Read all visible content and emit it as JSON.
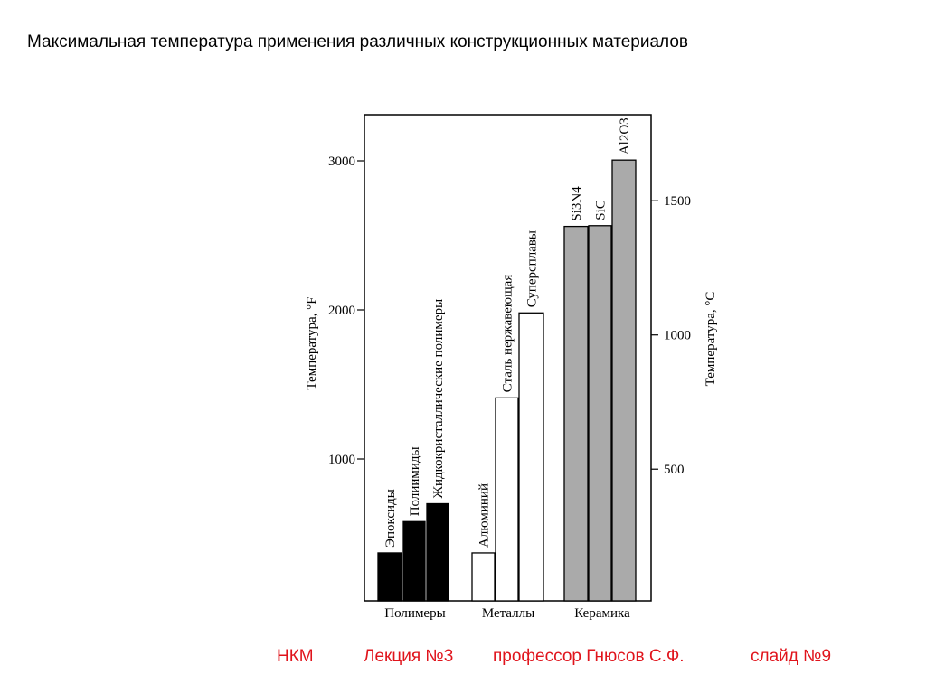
{
  "slide": {
    "title": "Максимальная температура применения различных конструкционных материалов",
    "footer": {
      "course": "НКМ",
      "lecture": "Лекция №3",
      "author": "профессор Гнюсов С.Ф.",
      "slide": "слайд №9"
    }
  },
  "colors": {
    "polymers": "#000000",
    "metals": "#ffffff",
    "ceramics": "#aaaaaa",
    "footer": "#e0141c"
  },
  "chart_data": {
    "type": "bar",
    "title": "",
    "ylabel": "Температура, °F",
    "ylabel_right": "Температура, °C",
    "ylim": [
      50,
      3310
    ],
    "yticks": [
      1000,
      2000,
      3000
    ],
    "yticks_right": [
      500,
      1000,
      1500
    ],
    "groups": [
      "Полимеры",
      "Металлы",
      "Керамика"
    ],
    "bars": [
      {
        "label": "Эпоксиды",
        "group": 0,
        "value": 370
      },
      {
        "label": "Полиимиды",
        "group": 0,
        "value": 580
      },
      {
        "label": "Жидкокристаллические полимеры",
        "group": 0,
        "value": 700
      },
      {
        "label": "Алюминий",
        "group": 1,
        "value": 370
      },
      {
        "label": "Сталь нержавеющая",
        "group": 1,
        "value": 1410
      },
      {
        "label": "Суперсплавы",
        "group": 1,
        "value": 1980
      },
      {
        "label": "Si3N4",
        "group": 2,
        "value": 2560
      },
      {
        "label": "SiC",
        "group": 2,
        "value": 2565
      },
      {
        "label": "Al2O3",
        "group": 2,
        "value": 3005
      }
    ]
  }
}
